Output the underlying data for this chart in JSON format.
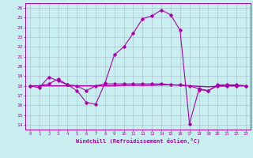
{
  "title": "",
  "xlabel": "Windchill (Refroidissement éolien,°C)",
  "ylabel": "",
  "bg_color": "#c8eef0",
  "grid_color": "#aabbcc",
  "line_color": "#aa00aa",
  "spine_color": "#aa00aa",
  "xlim": [
    -0.5,
    23.5
  ],
  "ylim": [
    13.5,
    26.5
  ],
  "yticks": [
    14,
    15,
    16,
    17,
    18,
    19,
    20,
    21,
    22,
    23,
    24,
    25,
    26
  ],
  "xticks": [
    0,
    1,
    2,
    3,
    4,
    5,
    6,
    7,
    8,
    9,
    10,
    11,
    12,
    13,
    14,
    15,
    16,
    17,
    18,
    19,
    20,
    21,
    22,
    23
  ],
  "line1_x": [
    0,
    1,
    2,
    3,
    4,
    5,
    6,
    7,
    8,
    9,
    10,
    11,
    12,
    13,
    14,
    15,
    16,
    17,
    18,
    19,
    20,
    21,
    22,
    23
  ],
  "line1_y": [
    18.0,
    17.8,
    18.9,
    18.5,
    18.1,
    17.5,
    16.3,
    16.1,
    18.3,
    21.2,
    22.0,
    23.4,
    24.9,
    25.2,
    25.8,
    25.3,
    23.7,
    14.1,
    17.6,
    17.5,
    18.1,
    18.1,
    18.1,
    18.0
  ],
  "line2_x": [
    0,
    1,
    2,
    3,
    4,
    5,
    6,
    7,
    8,
    9,
    10,
    11,
    12,
    13,
    14,
    15,
    16,
    17,
    18,
    19,
    20,
    21,
    22,
    23
  ],
  "line2_y": [
    18.0,
    18.0,
    18.0,
    18.0,
    18.0,
    18.0,
    18.0,
    18.0,
    18.0,
    18.0,
    18.05,
    18.05,
    18.05,
    18.05,
    18.1,
    18.1,
    18.05,
    18.0,
    17.95,
    17.9,
    17.95,
    18.0,
    18.0,
    18.0
  ],
  "line3_x": [
    0,
    1,
    2,
    3,
    4,
    5,
    6,
    7,
    8,
    9,
    10,
    11,
    12,
    13,
    14,
    15,
    16,
    17,
    18,
    19,
    20,
    21,
    22,
    23
  ],
  "line3_y": [
    18.0,
    18.0,
    18.2,
    18.7,
    18.1,
    18.0,
    17.5,
    18.0,
    18.2,
    18.2,
    18.2,
    18.2,
    18.2,
    18.2,
    18.2,
    18.1,
    18.1,
    18.0,
    17.7,
    17.5,
    18.0,
    18.0,
    18.0,
    18.0
  ]
}
